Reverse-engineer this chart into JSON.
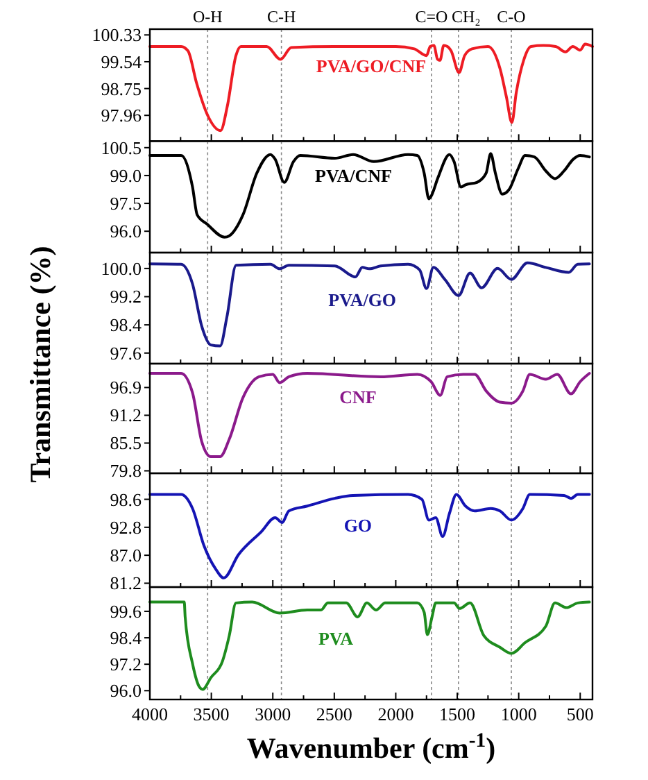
{
  "chart_data": [
    {
      "type": "line",
      "xlim": [
        4000,
        400
      ],
      "xticks": [
        4000,
        {
          "value": 3750,
          "label": null
        },
        3500,
        {
          "value": 3250,
          "label": null
        },
        3000,
        {
          "value": 2750,
          "label": null
        },
        2500,
        {
          "value": 2250,
          "label": null
        },
        2000,
        {
          "value": 1750,
          "label": null
        },
        1500,
        {
          "value": 1250,
          "label": null
        },
        1000,
        {
          "value": 750,
          "label": null
        },
        500
      ],
      "ylim": [
        97.2,
        100.5
      ],
      "yticks": [
        97.96,
        98.75,
        99.54,
        100.33
      ],
      "tick_labels": "y",
      "ref_lines": [
        {
          "axis": "x",
          "value": 3530,
          "label": "O-H",
          "line_style": "dotted"
        },
        {
          "axis": "x",
          "value": 2930,
          "label": "C-H",
          "line_style": "dotted"
        },
        {
          "axis": "x",
          "value": 1710,
          "label": "C=O",
          "line_style": "dotted"
        },
        {
          "axis": "x",
          "value": 1490,
          "label": "CH₂",
          "line_style": "dotted"
        },
        {
          "axis": "x",
          "value": 1060,
          "label": "C-O",
          "line_style": "dotted"
        }
      ],
      "series": [
        {
          "name": "PVA/GO/CNF",
          "color": "#ee1c24",
          "x": [
            4000,
            3746,
            3690,
            3620,
            3530,
            3425,
            3370,
            3300,
            3260,
            3050,
            2937,
            2850,
            2500,
            2000,
            1850,
            1750,
            1720,
            1690,
            1660,
            1640,
            1610,
            1580,
            1550,
            1485,
            1440,
            1380,
            1250,
            1150,
            1100,
            1056,
            1020,
            960,
            900,
            800,
            700,
            620,
            560,
            500,
            460,
            400
          ],
          "values": [
            99.99,
            99.99,
            99.86,
            98.91,
            97.96,
            97.51,
            98.23,
            99.72,
            99.99,
            99.99,
            99.61,
            99.96,
            99.99,
            99.99,
            99.92,
            99.72,
            99.99,
            100.02,
            99.61,
            99.58,
            100.02,
            99.99,
            99.86,
            99.22,
            99.72,
            99.92,
            99.99,
            99.31,
            98.5,
            97.75,
            98.63,
            99.58,
            99.99,
            100.02,
            99.99,
            99.83,
            99.99,
            99.88,
            100.06,
            99.99
          ]
        }
      ]
    },
    {
      "type": "line",
      "xlim": [
        4000,
        400
      ],
      "xticks": [
        4000,
        {
          "value": 3750,
          "label": null
        },
        3500,
        {
          "value": 3250,
          "label": null
        },
        3000,
        {
          "value": 2750,
          "label": null
        },
        2500,
        {
          "value": 2250,
          "label": null
        },
        2000,
        {
          "value": 1750,
          "label": null
        },
        1500,
        {
          "value": 1250,
          "label": null
        },
        1000,
        {
          "value": 750,
          "label": null
        },
        500
      ],
      "ylim": [
        94.85,
        100.85
      ],
      "yticks": [
        {
          "value": 96,
          "label": "96.0"
        },
        97.5,
        {
          "value": 99,
          "label": "99.0"
        },
        100.5
      ],
      "tick_labels": "y",
      "ref_lines": [
        {
          "axis": "x",
          "value": 3530,
          "line_style": "dotted"
        },
        {
          "axis": "x",
          "value": 2930,
          "line_style": "dotted"
        },
        {
          "axis": "x",
          "value": 1710,
          "line_style": "dotted"
        },
        {
          "axis": "x",
          "value": 1490,
          "line_style": "dotted"
        },
        {
          "axis": "x",
          "value": 1060,
          "line_style": "dotted"
        }
      ],
      "series": [
        {
          "name": "PVA/CNF",
          "color": "#000000",
          "x": [
            4000,
            3746,
            3653,
            3615,
            3534,
            3392,
            3355,
            3243,
            3130,
            3019,
            2981,
            2907,
            2832,
            2776,
            2496,
            2347,
            2179,
            1900,
            1825,
            1769,
            1731,
            1713,
            1657,
            1563,
            1526,
            1470,
            1433,
            1340,
            1265,
            1228,
            1190,
            1134,
            1078,
            1004,
            948,
            873,
            780,
            705,
            631,
            556,
            500,
            425
          ],
          "values": [
            100.08,
            100.08,
            98.38,
            96.88,
            96.38,
            95.68,
            95.75,
            96.88,
            99.13,
            100.13,
            99.88,
            98.63,
            99.75,
            100.08,
            99.93,
            100.13,
            99.75,
            100.13,
            100.08,
            99.13,
            97.75,
            97.88,
            98.88,
            100.13,
            99.75,
            98.38,
            98.5,
            98.63,
            99.13,
            100.18,
            99.13,
            98.0,
            98.25,
            99.38,
            100.08,
            100.0,
            99.25,
            98.83,
            99.25,
            99.88,
            100.08,
            100.0
          ]
        }
      ]
    },
    {
      "type": "line",
      "xlim": [
        4000,
        400
      ],
      "xticks": [
        4000,
        {
          "value": 3750,
          "label": null
        },
        3500,
        {
          "value": 3250,
          "label": null
        },
        3000,
        {
          "value": 2750,
          "label": null
        },
        2500,
        {
          "value": 2250,
          "label": null
        },
        2000,
        {
          "value": 1750,
          "label": null
        },
        1500,
        {
          "value": 1250,
          "label": null
        },
        1000,
        {
          "value": 750,
          "label": null
        },
        500
      ],
      "ylim": [
        97.3,
        100.45
      ],
      "yticks": [
        97.6,
        98.4,
        99.2,
        {
          "value": 100,
          "label": "100.0"
        }
      ],
      "tick_labels": "y",
      "ylabel": "Transmittance (%)",
      "ref_lines": [
        {
          "axis": "x",
          "value": 3530,
          "line_style": "dotted"
        },
        {
          "axis": "x",
          "value": 2930,
          "line_style": "dotted"
        },
        {
          "axis": "x",
          "value": 1710,
          "line_style": "dotted"
        },
        {
          "axis": "x",
          "value": 1490,
          "line_style": "dotted"
        },
        {
          "axis": "x",
          "value": 1060,
          "line_style": "dotted"
        }
      ],
      "series": [
        {
          "name": "PVA/GO",
          "color": "#1a1a8c",
          "x": [
            4000,
            3746,
            3653,
            3578,
            3504,
            3429,
            3373,
            3299,
            3019,
            2944,
            2869,
            2496,
            2328,
            2272,
            2216,
            2123,
            1900,
            1806,
            1750,
            1694,
            1601,
            1489,
            1396,
            1302,
            1172,
            1060,
            929,
            780,
            593,
            519,
            425
          ],
          "values": [
            100.13,
            100.12,
            99.56,
            98.36,
            97.83,
            97.8,
            98.63,
            100.09,
            100.12,
            99.99,
            100.09,
            100.07,
            99.76,
            100.03,
            99.99,
            100.07,
            100.12,
            99.96,
            99.43,
            100.03,
            99.69,
            99.23,
            99.87,
            99.45,
            100.0,
            99.69,
            100.16,
            100.03,
            99.89,
            100.12,
            100.13
          ]
        }
      ]
    },
    {
      "type": "line",
      "xlim": [
        4000,
        400
      ],
      "xticks": [
        4000,
        {
          "value": 3750,
          "label": null
        },
        3500,
        {
          "value": 3250,
          "label": null
        },
        3000,
        {
          "value": 2750,
          "label": null
        },
        2500,
        {
          "value": 2250,
          "label": null
        },
        2000,
        {
          "value": 1750,
          "label": null
        },
        1500,
        {
          "value": 1250,
          "label": null
        },
        1000,
        {
          "value": 750,
          "label": null
        },
        500
      ],
      "ylim": [
        79.3,
        101.8
      ],
      "yticks": [
        79.8,
        85.5,
        91.2,
        96.9
      ],
      "tick_labels": "y",
      "ref_lines": [
        {
          "axis": "x",
          "value": 3530,
          "line_style": "dotted"
        },
        {
          "axis": "x",
          "value": 2930,
          "line_style": "dotted"
        },
        {
          "axis": "x",
          "value": 1710,
          "line_style": "dotted"
        },
        {
          "axis": "x",
          "value": 1490,
          "line_style": "dotted"
        },
        {
          "axis": "x",
          "value": 1060,
          "line_style": "dotted"
        }
      ],
      "series": [
        {
          "name": "CNF",
          "color": "#8b1a8b",
          "x": [
            4000,
            3746,
            3653,
            3578,
            3504,
            3429,
            3354,
            3243,
            3112,
            3000,
            2944,
            2869,
            2720,
            2123,
            1825,
            1713,
            1638,
            1582,
            1451,
            1358,
            1265,
            1153,
            1060,
            966,
            910,
            780,
            687,
            575,
            500,
            425
          ],
          "values": [
            99.8,
            99.8,
            95.8,
            85.8,
            82.7,
            82.7,
            86.3,
            94.8,
            99.1,
            99.6,
            97.9,
            99.1,
            99.8,
            99.1,
            99.6,
            98.1,
            95.3,
            99.1,
            99.6,
            99.6,
            96.2,
            93.9,
            93.7,
            96.2,
            99.6,
            98.6,
            99.6,
            95.6,
            98.1,
            99.8
          ]
        }
      ]
    },
    {
      "type": "line",
      "xlim": [
        4000,
        400
      ],
      "xticks": [
        4000,
        {
          "value": 3750,
          "label": null
        },
        3500,
        {
          "value": 3250,
          "label": null
        },
        3000,
        {
          "value": 2750,
          "label": null
        },
        2500,
        {
          "value": 2250,
          "label": null
        },
        2000,
        {
          "value": 1750,
          "label": null
        },
        1500,
        {
          "value": 1250,
          "label": null
        },
        1000,
        {
          "value": 750,
          "label": null
        },
        500
      ],
      "ylim": [
        80.4,
        104
      ],
      "yticks": [
        81.2,
        {
          "value": 87,
          "label": "87.0"
        },
        92.8,
        98.6
      ],
      "tick_labels": "y",
      "ref_lines": [
        {
          "axis": "x",
          "value": 3530,
          "line_style": "dotted"
        },
        {
          "axis": "x",
          "value": 2930,
          "line_style": "dotted"
        },
        {
          "axis": "x",
          "value": 1710,
          "line_style": "dotted"
        },
        {
          "axis": "x",
          "value": 1490,
          "line_style": "dotted"
        },
        {
          "axis": "x",
          "value": 1060,
          "line_style": "dotted"
        }
      ],
      "series": [
        {
          "name": "GO",
          "color": "#1414b4",
          "x": [
            4000,
            3746,
            3653,
            3560,
            3466,
            3399,
            3280,
            3093,
            2981,
            2925,
            2869,
            2720,
            2496,
            2347,
            1900,
            1787,
            1731,
            1675,
            1619,
            1563,
            1507,
            1433,
            1358,
            1228,
            1153,
            1060,
            966,
            910,
            631,
            575,
            519,
            425
          ],
          "values": [
            99.6,
            99.6,
            96.7,
            89.0,
            84.2,
            82.3,
            87.1,
            91.9,
            94.8,
            93.8,
            96.2,
            97.2,
            98.8,
            99.4,
            99.6,
            98.6,
            94.3,
            94.8,
            90.9,
            95.7,
            99.6,
            97.2,
            96.2,
            96.7,
            96.2,
            94.3,
            96.7,
            99.6,
            99.4,
            98.8,
            99.6,
            99.6
          ]
        }
      ]
    },
    {
      "type": "line",
      "xlim": [
        4000,
        400
      ],
      "xticks": [
        4000,
        {
          "value": 3750,
          "label": null
        },
        3500,
        {
          "value": 3250,
          "label": null
        },
        3000,
        {
          "value": 2750,
          "label": null
        },
        2500,
        {
          "value": 2250,
          "label": null
        },
        2000,
        {
          "value": 1750,
          "label": null
        },
        1500,
        {
          "value": 1250,
          "label": null
        },
        1000,
        {
          "value": 750,
          "label": null
        },
        500
      ],
      "ylim": [
        95.6,
        100.7
      ],
      "yticks": [
        {
          "value": 96,
          "label": "96.0"
        },
        97.2,
        98.4,
        99.6
      ],
      "xlabel": "Wavenumber (cm$^{-1}$)",
      "ref_lines": [
        {
          "axis": "x",
          "value": 3530,
          "line_style": "dotted"
        },
        {
          "axis": "x",
          "value": 2930,
          "line_style": "dotted"
        },
        {
          "axis": "x",
          "value": 1710,
          "line_style": "dotted"
        },
        {
          "axis": "x",
          "value": 1490,
          "line_style": "dotted"
        },
        {
          "axis": "x",
          "value": 1060,
          "line_style": "dotted"
        }
      ],
      "series": [
        {
          "name": "PVA",
          "color": "#1e8c1e",
          "x": [
            4000,
            3720,
            3713,
            3653,
            3597,
            3570,
            3504,
            3410,
            3354,
            3300,
            3168,
            2944,
            2720,
            2608,
            2552,
            2403,
            2310,
            2235,
            2160,
            2086,
            1825,
            1769,
            1743,
            1705,
            1675,
            1526,
            1481,
            1396,
            1284,
            1153,
            1060,
            948,
            780,
            705,
            612,
            519,
            425
          ],
          "values": [
            100.02,
            100.02,
            99.35,
            97.23,
            96.17,
            96.06,
            96.59,
            97.33,
            98.5,
            99.98,
            100.02,
            99.52,
            99.66,
            99.66,
            99.98,
            99.98,
            99.35,
            99.98,
            99.66,
            99.98,
            99.98,
            99.56,
            98.54,
            99.35,
            99.98,
            99.98,
            99.73,
            99.98,
            98.5,
            97.97,
            97.69,
            98.18,
            98.92,
            99.98,
            99.77,
            99.98,
            100.02
          ]
        }
      ]
    }
  ]
}
